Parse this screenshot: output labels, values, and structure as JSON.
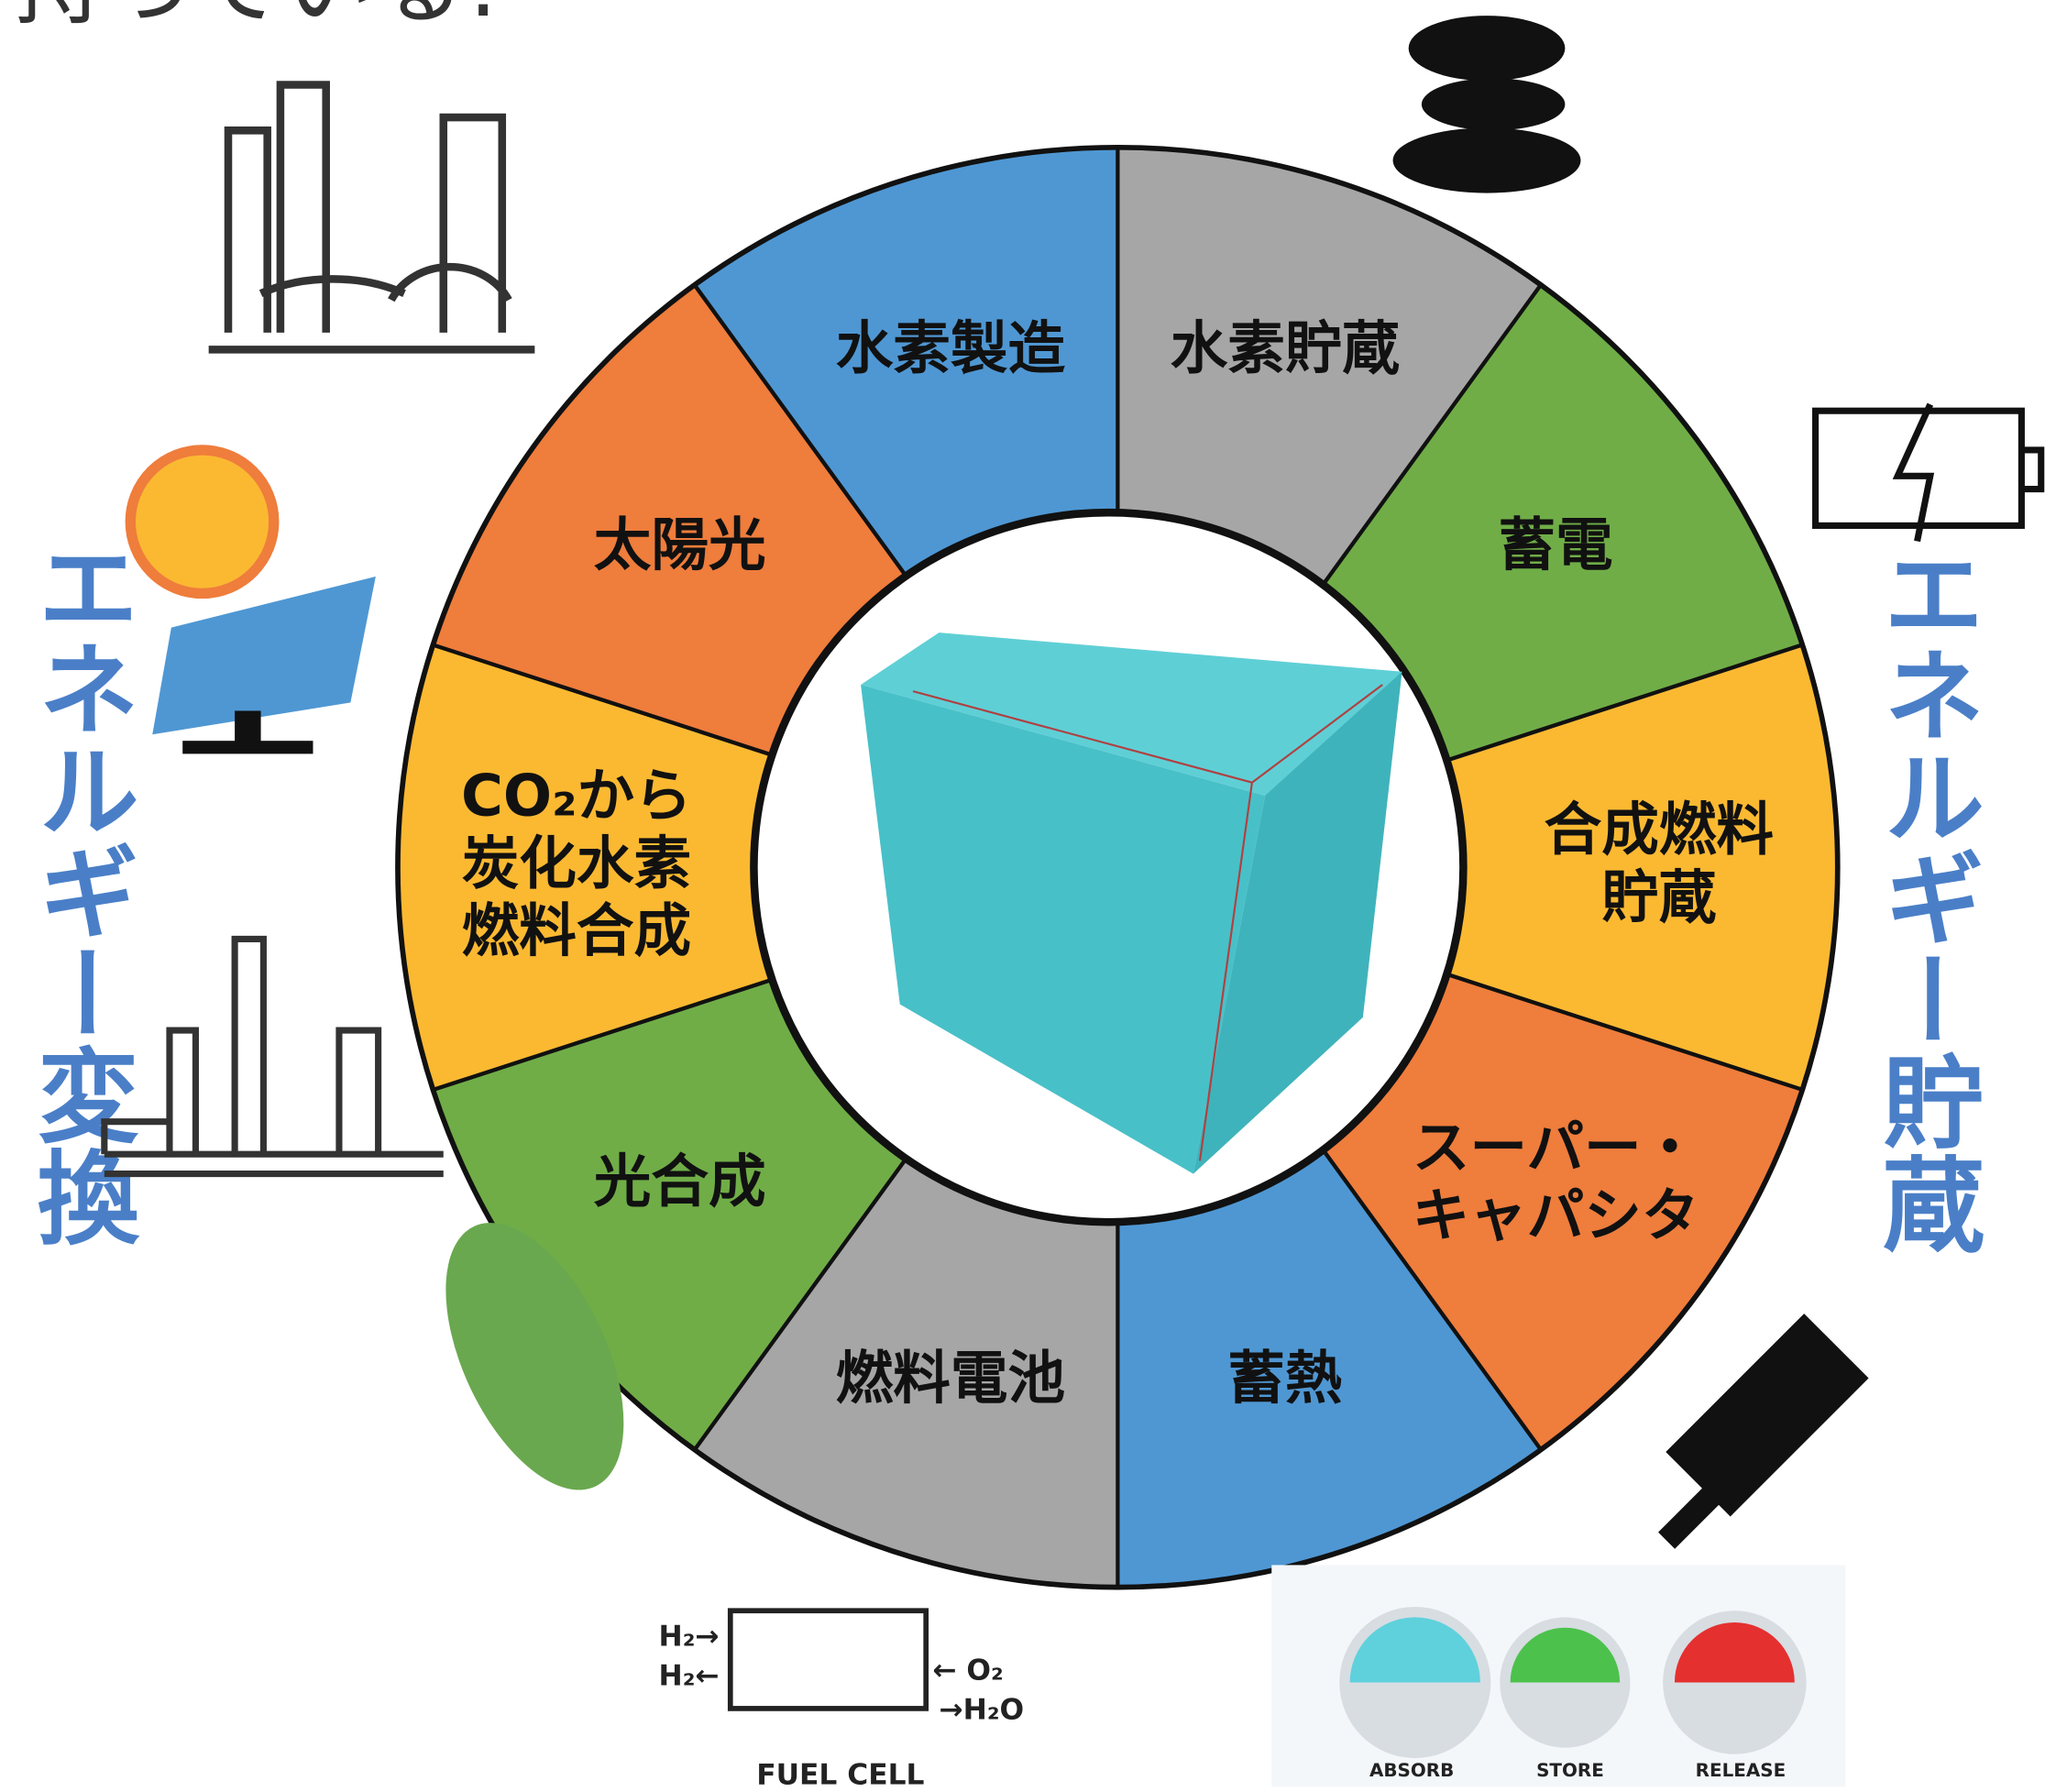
{
  "header": {
    "text": "持っている!"
  },
  "side_labels": {
    "left": "エネルギー変換",
    "right": "エネルギー貯蔵"
  },
  "segments": [
    {
      "lines": [
        "水素貯蔵"
      ],
      "color": "#a6a6a6"
    },
    {
      "lines": [
        "蓄電"
      ],
      "color": "#70ad47"
    },
    {
      "lines": [
        "合成燃料",
        "貯蔵"
      ],
      "color": "#fbb932"
    },
    {
      "lines": [
        "スーパー・",
        "キャパシタ"
      ],
      "color": "#ef7d3c"
    },
    {
      "lines": [
        "蓄熱"
      ],
      "color": "#4f97d3"
    },
    {
      "lines": [
        "燃料電池"
      ],
      "color": "#a6a6a6"
    },
    {
      "lines": [
        "光合成"
      ],
      "color": "#70ad47"
    },
    {
      "lines": [
        "CO₂から",
        "炭化水素",
        "燃料合成"
      ],
      "color": "#fbb932"
    },
    {
      "lines": [
        "太陽光"
      ],
      "color": "#ef7d3c"
    },
    {
      "lines": [
        "水素製造"
      ],
      "color": "#4f97d3"
    }
  ],
  "fuel_cell": {
    "title": "FUEL CELL",
    "labels": [
      "H₂→",
      "H₂←",
      "← O₂",
      "→H₂O"
    ]
  },
  "heat_storage": {
    "labels": [
      "ABSORB",
      "STORE",
      "RELEASE"
    ]
  }
}
